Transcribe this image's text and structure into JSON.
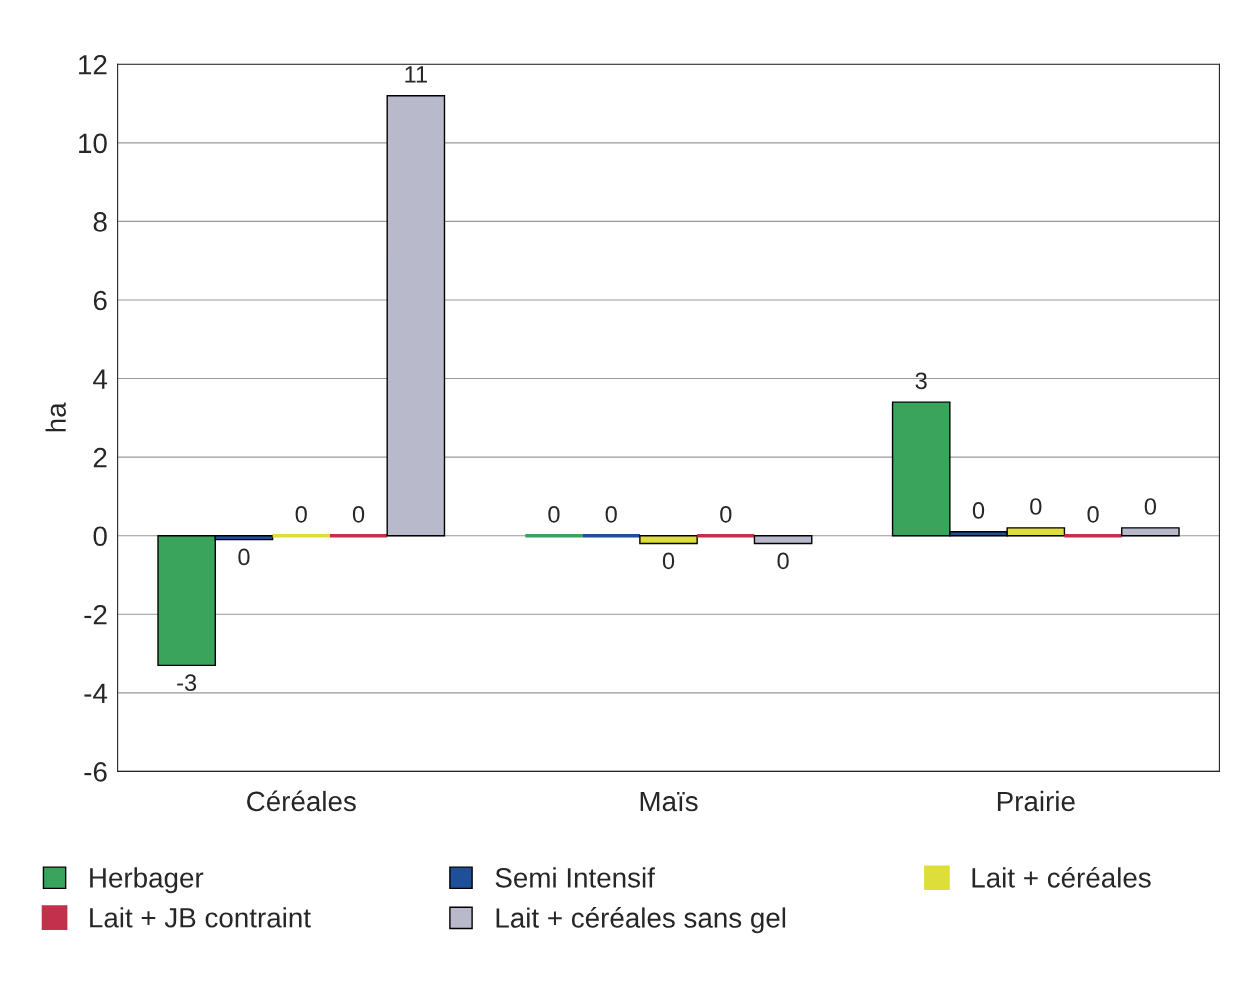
{
  "chart_data": {
    "type": "bar",
    "ylabel": "ha",
    "categories": [
      "Céréales",
      "Maïs",
      "Prairie"
    ],
    "series": [
      {
        "name": "Herbager",
        "color": "#3aa35c",
        "values": [
          -3.3,
          0,
          3.4
        ],
        "value_labels": [
          "-3",
          "0",
          "3"
        ]
      },
      {
        "name": "Semi Intensif",
        "color": "#1d4f9a",
        "values": [
          -0.1,
          0,
          0.1
        ],
        "value_labels": [
          "0",
          "0",
          "0"
        ]
      },
      {
        "name": "Lait + céréales",
        "color": "#dede3a",
        "values": [
          0,
          -0.2,
          0.2
        ],
        "value_labels": [
          "0",
          "0",
          "0"
        ]
      },
      {
        "name": "Lait + JB contraint",
        "color": "#c2304c",
        "values": [
          0,
          0,
          0
        ],
        "value_labels": [
          "0",
          "0",
          "0"
        ]
      },
      {
        "name": "Lait + céréales sans gel",
        "color": "#b9b9cc",
        "values": [
          11.2,
          -0.2,
          0.2
        ],
        "value_labels": [
          "11",
          "0",
          "0"
        ]
      }
    ],
    "ylim": [
      -6,
      12
    ],
    "yticks": [
      -6,
      -4,
      -2,
      0,
      2,
      4,
      6,
      8,
      10,
      12
    ],
    "grid": "y",
    "legend": "bottom"
  }
}
